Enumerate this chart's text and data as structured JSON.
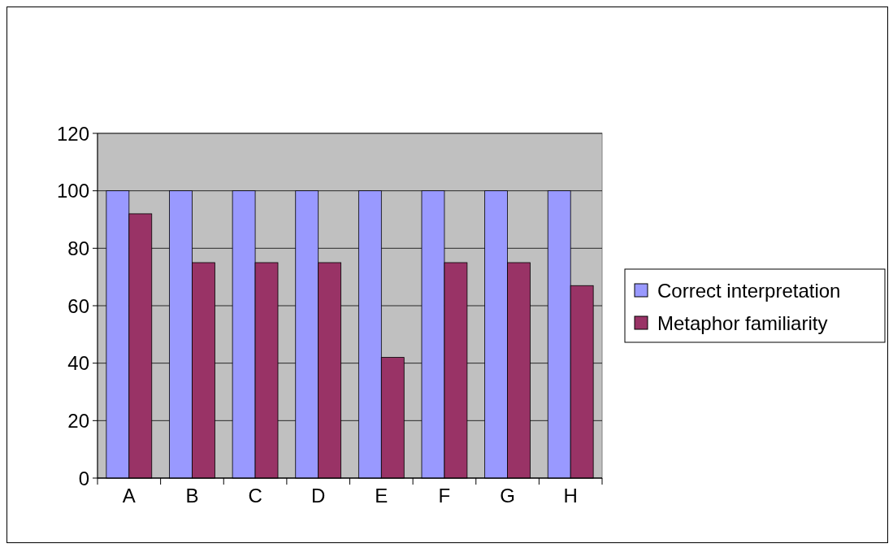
{
  "chart_data": {
    "type": "bar",
    "categories": [
      "A",
      "B",
      "C",
      "D",
      "E",
      "F",
      "G",
      "H"
    ],
    "series": [
      {
        "name": "Correct interpretation",
        "color": "#9999ff",
        "values": [
          100,
          100,
          100,
          100,
          100,
          100,
          100,
          100
        ]
      },
      {
        "name": "Metaphor familiarity",
        "color": "#993366",
        "values": [
          92,
          75,
          75,
          75,
          42,
          75,
          75,
          67
        ]
      }
    ],
    "ylim": [
      0,
      120
    ],
    "yticks": [
      0,
      20,
      40,
      60,
      80,
      100,
      120
    ],
    "grid": "y",
    "legend": "right"
  }
}
